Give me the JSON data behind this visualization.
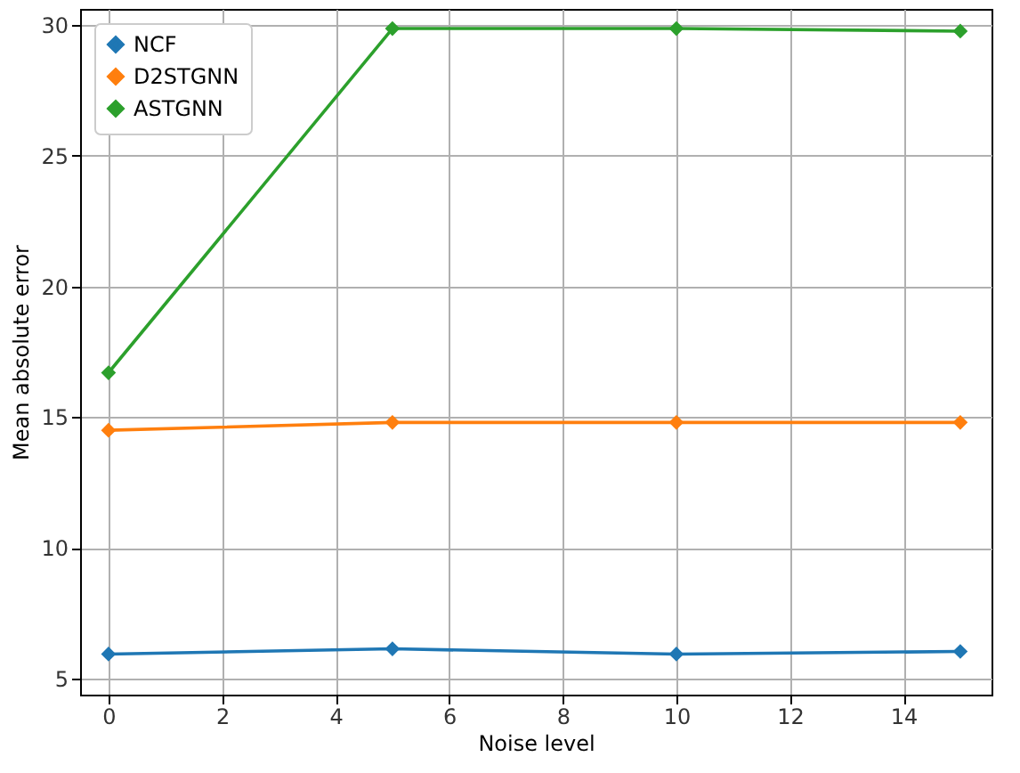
{
  "chart_data": {
    "type": "line",
    "xlabel": "Noise level",
    "ylabel": "Mean absolute error",
    "x": [
      0,
      5,
      10,
      15
    ],
    "series": [
      {
        "name": "NCF",
        "color": "#1f77b4",
        "values": [
          5.95,
          6.15,
          5.95,
          6.05
        ]
      },
      {
        "name": "D2STGNN",
        "color": "#ff7f0e",
        "values": [
          14.5,
          14.8,
          14.8,
          14.8
        ]
      },
      {
        "name": "ASTGNN",
        "color": "#2ca02c",
        "values": [
          16.7,
          29.85,
          29.85,
          29.75
        ]
      }
    ],
    "xlim": [
      -0.5,
      15.55
    ],
    "ylim": [
      4.4,
      30.6
    ],
    "xticks": [
      0,
      2,
      4,
      6,
      8,
      10,
      12,
      14
    ],
    "yticks": [
      5,
      10,
      15,
      20,
      25,
      30
    ],
    "grid": true,
    "legend": "top left",
    "marker": "diamond",
    "line_style": "solid"
  }
}
